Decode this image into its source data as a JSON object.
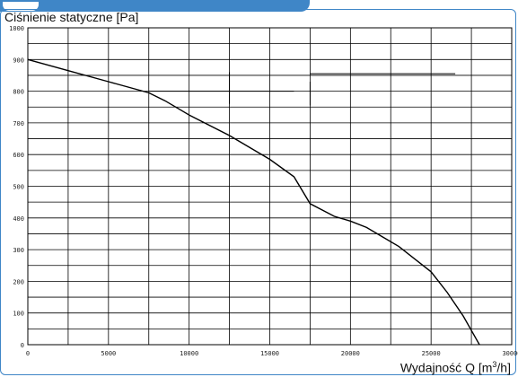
{
  "chart_data": {
    "type": "line",
    "title": "Ciśnienie statyczne [Pa]",
    "xlabel_main": "Wydajność Q [m",
    "xlabel_sup": "3",
    "xlabel_end": "/h]",
    "x_ticks": [
      "0",
      "5000",
      "10000",
      "15000",
      "20000",
      "25000",
      "30000"
    ],
    "y_ticks": [
      "0",
      "100",
      "200",
      "300",
      "400",
      "500",
      "600",
      "700",
      "800",
      "900",
      "1000"
    ],
    "xlim": [
      0,
      30000
    ],
    "ylim": [
      0,
      1000
    ],
    "grid": true,
    "series": [
      {
        "color": "#000000",
        "x": [
          0,
          2500,
          5000,
          7500,
          8500,
          10000,
          12500,
          15000,
          16500,
          17500,
          19000,
          20000,
          21000,
          22000,
          23000,
          24000,
          25000,
          26000,
          27000,
          28000
        ],
        "y": [
          900,
          865,
          830,
          795,
          770,
          725,
          660,
          585,
          530,
          445,
          405,
          390,
          370,
          340,
          310,
          270,
          230,
          165,
          90,
          0
        ]
      }
    ],
    "annotations": [
      {
        "x": [
          7500,
          16500
        ],
        "y": [
          800,
          800
        ]
      },
      {
        "x": [
          12500,
          12500
        ],
        "y": [
          760,
          860
        ]
      },
      {
        "x": [
          17500,
          26500
        ],
        "y": [
          855,
          855
        ]
      },
      {
        "x": [
          17500,
          17500
        ],
        "y": [
          755,
          830
        ]
      }
    ]
  }
}
